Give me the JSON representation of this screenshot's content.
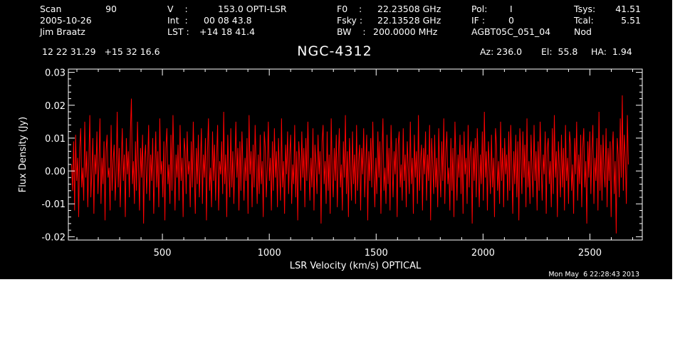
{
  "header": {
    "scan_label": "Scan",
    "scan_value": "90",
    "date": "2005-10-26",
    "observer": "Jim Braatz",
    "v_label": "V    :",
    "v_value": "153.0 OPTI-LSR",
    "int_label": "Int  :",
    "int_value": "00 08 43.8",
    "lst_label": "LST :",
    "lst_value": "+14 18 41.4",
    "f0_label": "F0    :",
    "f0_value": "22.23508 GHz",
    "fsky_label": "Fsky :",
    "fsky_value": "22.13528 GHz",
    "bw_label": "BW    :",
    "bw_value": "200.0000 MHz",
    "pol_label": "Pol:",
    "pol_value": "I",
    "if_label": "IF :",
    "if_value": "0",
    "project": "AGBT05C_051_04",
    "tsys_label": "Tsys:",
    "tsys_value": "41.51",
    "tcal_label": "Tcal:",
    "tcal_value": "5.51",
    "mode": "Nod",
    "coords": "12 22 31.29   +15 32 16.6",
    "az": "Az: 236.0",
    "el": "El:  55.8",
    "ha": "HA:  1.94"
  },
  "timestamp": "Mon May  6 22:28:43 2013",
  "colors": {
    "background": "#000000",
    "axes": "#ffffff",
    "series": "#ff0000"
  },
  "chart_data": {
    "type": "line",
    "title": "NGC-4312",
    "xlabel": "LSR Velocity (km/s) OPTICAL",
    "ylabel": "Flux Density (Jy)",
    "xlim": [
      60,
      2745
    ],
    "ylim": [
      -0.021,
      0.031
    ],
    "xticks": [
      500,
      1000,
      1500,
      2000,
      2500
    ],
    "xtick_labels": [
      "500",
      "1000",
      "1500",
      "2000",
      "2500"
    ],
    "yticks": [
      -0.02,
      -0.01,
      0.0,
      0.01,
      0.02,
      0.03
    ],
    "ytick_labels": [
      "-0.02",
      "-0.01",
      "0.00",
      "0.01",
      "0.02",
      "0.03"
    ],
    "grid": false,
    "series": [
      {
        "x_start": 75,
        "x_end": 2680,
        "values": [
          0.002,
          -0.006,
          0.009,
          -0.012,
          0.011,
          -0.003,
          0.004,
          -0.014,
          0.007,
          0.013,
          -0.005,
          0.001,
          -0.009,
          0.015,
          -0.002,
          0.006,
          -0.011,
          0.003,
          0.017,
          -0.008,
          0.0,
          0.01,
          -0.013,
          0.005,
          -0.001,
          0.012,
          -0.007,
          0.002,
          0.016,
          -0.01,
          0.004,
          -0.004,
          0.009,
          -0.015,
          0.006,
          0.011,
          -0.002,
          0.001,
          -0.012,
          0.014,
          -0.006,
          0.003,
          0.008,
          -0.009,
          0.0,
          0.018,
          -0.005,
          0.007,
          -0.011,
          0.002,
          0.013,
          -0.003,
          0.005,
          -0.014,
          0.01,
          -0.001,
          0.006,
          -0.008,
          0.012,
          0.022,
          -0.004,
          0.003,
          -0.01,
          0.009,
          -0.006,
          0.015,
          0.001,
          -0.012,
          0.007,
          -0.002,
          0.011,
          -0.016,
          0.004,
          0.008,
          -0.007,
          0.002,
          0.014,
          -0.009,
          0.005,
          -0.003,
          0.01,
          -0.013,
          0.0,
          0.012,
          -0.005,
          0.006,
          -0.011,
          0.016,
          -0.001,
          0.003,
          -0.008,
          0.009,
          -0.015,
          0.007,
          0.013,
          -0.004,
          0.002,
          -0.01,
          0.011,
          -0.006,
          0.017,
          0.001,
          -0.012,
          0.005,
          -0.002,
          0.008,
          -0.009,
          0.014,
          -0.003,
          0.004,
          -0.014,
          0.01,
          0.006,
          -0.007,
          0.012,
          -0.001,
          0.003,
          -0.011,
          0.009,
          -0.005,
          0.015,
          0.0,
          -0.013,
          0.007,
          -0.004,
          0.011,
          -0.008,
          0.002,
          0.013,
          -0.01,
          0.005,
          -0.002,
          0.01,
          -0.015,
          0.006,
          0.016,
          -0.006,
          0.001,
          -0.011,
          0.012,
          -0.003,
          0.008,
          -0.009,
          0.004,
          0.014,
          -0.012,
          0.003,
          -0.001,
          0.009,
          -0.007,
          0.018,
          -0.004,
          0.005,
          -0.014,
          0.011,
          0.0,
          -0.008,
          0.013,
          -0.005,
          0.006,
          -0.01,
          0.002,
          0.015,
          -0.002,
          0.007,
          -0.012,
          0.009,
          -0.006,
          0.012,
          0.001,
          -0.009,
          0.004,
          -0.003,
          0.01,
          -0.013,
          0.017,
          -0.001,
          0.006,
          -0.011,
          0.008,
          -0.005,
          0.014,
          0.002,
          -0.01,
          0.005,
          -0.007,
          0.011,
          -0.004,
          0.003,
          -0.014,
          0.012,
          0.007,
          -0.008,
          0.001,
          0.015,
          -0.003,
          0.004,
          -0.012,
          0.009,
          -0.006,
          0.013,
          -0.002,
          0.006,
          -0.011,
          0.01,
          0.0,
          -0.009,
          0.016,
          -0.005,
          0.003,
          -0.013,
          0.008,
          -0.001,
          0.012,
          -0.007,
          0.005,
          0.011,
          -0.01,
          0.002,
          -0.004,
          0.014,
          -0.008,
          0.006,
          -0.015,
          0.009,
          0.003,
          -0.006,
          0.012,
          -0.002,
          0.007,
          -0.011,
          0.01,
          -0.003,
          0.015,
          0.001,
          -0.009,
          0.004,
          -0.005,
          0.013,
          -0.012,
          0.008,
          0.002,
          -0.007,
          0.011,
          -0.001,
          0.006,
          -0.016,
          0.009,
          0.014,
          -0.004,
          0.003,
          -0.01,
          0.012,
          -0.006,
          0.005,
          -0.013,
          0.016,
          0.0,
          -0.008,
          0.007,
          -0.003,
          0.011,
          -0.011,
          0.004,
          0.013,
          -0.005,
          0.002,
          -0.012,
          0.009,
          -0.002,
          0.017,
          -0.007,
          0.006,
          -0.014,
          0.01,
          0.001,
          -0.009,
          0.012,
          -0.004,
          0.005,
          -0.01,
          0.014,
          -0.006,
          0.003,
          0.008,
          -0.012,
          0.007,
          -0.001,
          0.013,
          -0.008,
          0.002,
          0.011,
          -0.015,
          0.006,
          -0.003,
          0.01,
          -0.005,
          0.015,
          0.0,
          -0.011,
          0.004,
          -0.007,
          0.012,
          -0.002,
          0.009,
          -0.013,
          0.005,
          0.016,
          -0.006,
          0.001,
          -0.01,
          0.011,
          -0.004,
          0.007,
          -0.012,
          0.014,
          0.003,
          -0.008,
          0.006,
          -0.001,
          0.01,
          -0.014,
          0.008,
          0.012,
          -0.005,
          0.002,
          -0.009,
          0.013,
          -0.003,
          0.005,
          -0.011,
          0.009,
          0.001,
          -0.007,
          0.015,
          -0.004,
          0.004,
          -0.013,
          0.011,
          -0.002,
          0.006,
          -0.01,
          0.017,
          -0.006,
          0.003,
          0.008,
          -0.012,
          0.007,
          -0.001,
          0.012,
          -0.009,
          0.005,
          -0.003,
          0.014,
          -0.015,
          0.01,
          0.002,
          -0.007,
          0.011,
          -0.005,
          0.004,
          -0.011,
          0.013,
          0.0,
          -0.008,
          0.009,
          -0.003,
          0.016,
          -0.01,
          0.006,
          0.012,
          -0.004,
          0.001,
          -0.012,
          0.01,
          -0.006,
          0.007,
          -0.014,
          0.015,
          0.003,
          -0.009,
          0.005,
          -0.002,
          0.011,
          -0.007,
          0.008,
          -0.013,
          0.012,
          -0.001,
          0.004,
          -0.01,
          0.014,
          -0.005,
          0.006,
          0.009,
          -0.016,
          0.007,
          -0.003,
          0.01,
          -0.008,
          0.013,
          0.002,
          -0.011,
          0.005,
          -0.004,
          0.012,
          -0.009,
          0.018,
          -0.002,
          0.006,
          -0.012,
          0.009,
          0.001,
          -0.007,
          0.011,
          -0.005,
          0.004,
          -0.014,
          0.013,
          0.008,
          -0.006,
          0.003,
          -0.01,
          0.015,
          -0.003,
          0.007,
          -0.011,
          0.01,
          -0.001,
          0.005,
          -0.009,
          0.012,
          -0.006,
          0.014,
          0.002,
          -0.013,
          0.006,
          -0.004,
          0.011,
          -0.008,
          0.009,
          -0.015,
          0.013,
          0.004,
          -0.007,
          0.012,
          -0.002,
          0.008,
          -0.011,
          0.016,
          -0.005,
          0.003,
          -0.01,
          0.011,
          0.0,
          -0.008,
          0.014,
          -0.003,
          0.006,
          -0.012,
          0.009,
          -0.006,
          0.015,
          0.002,
          -0.009,
          0.005,
          -0.001,
          0.012,
          -0.013,
          0.007,
          0.01,
          -0.004,
          0.003,
          -0.011,
          0.013,
          -0.007,
          0.017,
          -0.002,
          0.006,
          -0.014,
          0.009,
          0.001,
          -0.008,
          0.011,
          -0.005,
          0.007,
          -0.012,
          0.014,
          -0.003,
          0.004,
          -0.01,
          0.012,
          0.008,
          -0.006,
          0.002,
          -0.013,
          0.01,
          -0.001,
          0.015,
          -0.009,
          0.005,
          -0.004,
          0.011,
          -0.011,
          0.007,
          0.013,
          -0.005,
          0.003,
          -0.016,
          0.009,
          -0.002,
          0.012,
          -0.007,
          0.006,
          0.014,
          -0.01,
          0.004,
          -0.003,
          0.01,
          -0.012,
          0.018,
          -0.006,
          0.008,
          -0.009,
          0.011,
          0.0,
          -0.005,
          0.013,
          -0.011,
          0.007,
          -0.003,
          0.009,
          -0.014,
          0.006,
          0.012,
          -0.007,
          0.003,
          -0.019,
          0.01,
          0.005,
          -0.008,
          0.016,
          -0.002,
          0.023,
          -0.006,
          0.011,
          0.004,
          -0.01,
          0.017,
          0.002
        ]
      }
    ]
  }
}
